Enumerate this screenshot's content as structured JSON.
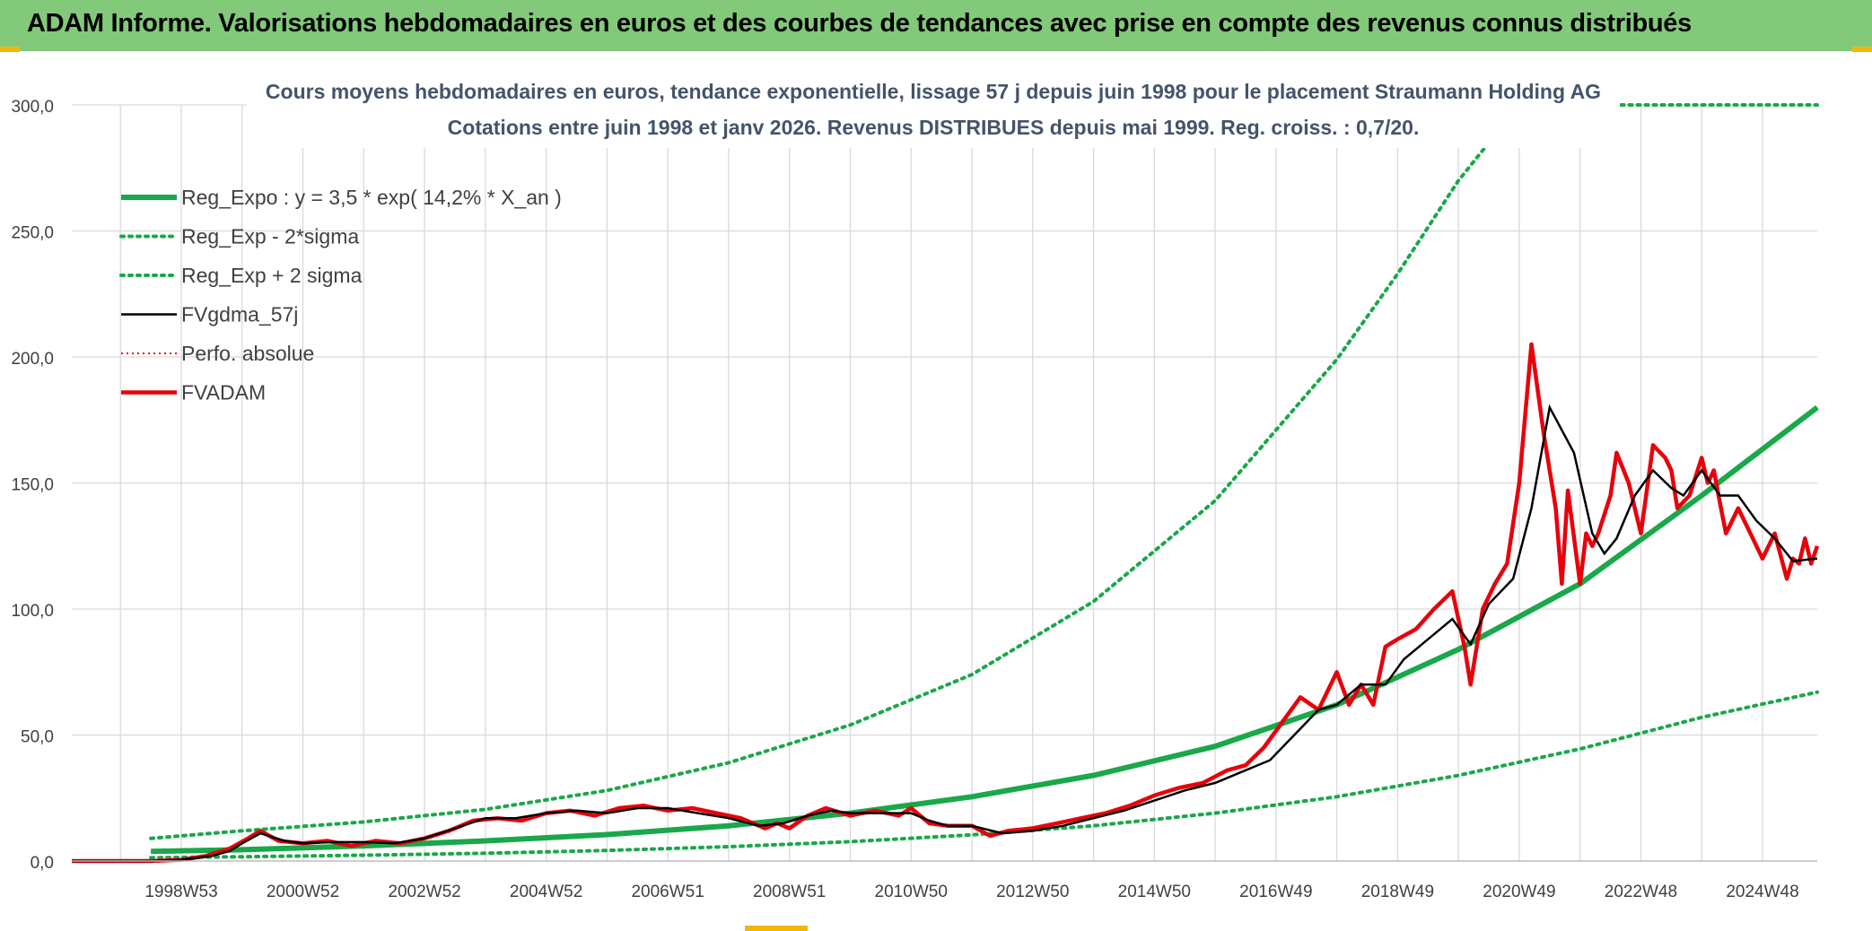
{
  "header": {
    "title": "ADAM Informe. Valorisations hebdomadaires en euros et des courbes de tendances avec prise en compte des revenus connus distribués"
  },
  "colors": {
    "header_bg": "#82c97a",
    "regression": "#19a84a",
    "fv57": "#000000",
    "fvadam": "#e8000b",
    "perf_abs": "#e8000b",
    "grid": "#d9d9d9"
  },
  "chart_data": {
    "type": "line",
    "title": "Cours moyens hebdomadaires en euros, tendance exponentielle, lissage 57 j depuis juin 1998 pour le placement Straumann Holding AG",
    "subtitle": "Cotations entre juin 1998 et janv 2026. Revenus DISTRIBUES depuis mai 1999. Reg. croiss. : 0,7/20.",
    "xlabel": "",
    "ylabel": "",
    "ylim": [
      0,
      300
    ],
    "xlim": [
      1997.2,
      2025.9
    ],
    "y_ticks": [
      0,
      50,
      100,
      150,
      200,
      250,
      300
    ],
    "y_tick_labels": [
      "0,0",
      "50,0",
      "100,0",
      "150,0",
      "200,0",
      "250,0",
      "300,0"
    ],
    "x_tick_labels": [
      "1998W53",
      "2000W52",
      "2002W52",
      "2004W52",
      "2006W51",
      "2008W51",
      "2010W50",
      "2012W50",
      "2014W50",
      "2016W49",
      "2018W49",
      "2020W49",
      "2022W48",
      "2024W48"
    ],
    "x_tick_years": [
      1999,
      2001,
      2003,
      2005,
      2007,
      2009,
      2011,
      2013,
      2015,
      2017,
      2019,
      2021,
      2023,
      2025
    ],
    "grid": true,
    "legend_position": "top-left",
    "legend": [
      {
        "label": "Reg_Expo : y = 3,5 * exp( 14,2% *  X_an )",
        "series": "reg_expo",
        "style": "thick-solid-green"
      },
      {
        "label": "Reg_Exp - 2*sigma",
        "series": "reg_minus",
        "style": "dotted-green"
      },
      {
        "label": "Reg_Exp + 2 sigma",
        "series": "reg_plus",
        "style": "dotted-green"
      },
      {
        "label": "FVgdma_57j",
        "series": "fv57",
        "style": "solid-black"
      },
      {
        "label": "Perfo. absolue",
        "series": "perf_abs",
        "style": "dotted-red"
      },
      {
        "label": "FVADAM",
        "series": "fvadam",
        "style": "thick-solid-red"
      }
    ],
    "series": [
      {
        "name": "Reg_Expo : y = 3,5 * exp( 14,2% *  X_an )",
        "key": "reg_expo",
        "x": [
          1998.5,
          2000,
          2002,
          2004,
          2006,
          2008,
          2010,
          2012,
          2014,
          2016,
          2018,
          2020,
          2022,
          2024,
          2025.9
        ],
        "y": [
          3.8,
          4.5,
          6,
          8,
          10.5,
          14,
          19,
          25.5,
          34,
          45.5,
          62,
          84,
          110,
          145,
          180
        ]
      },
      {
        "name": "Reg_Exp - 2*sigma",
        "key": "reg_minus",
        "x": [
          1998.5,
          2000,
          2002,
          2004,
          2006,
          2008,
          2010,
          2012,
          2014,
          2016,
          2018,
          2020,
          2022,
          2024,
          2025.9
        ],
        "y": [
          1.3,
          1.7,
          2.3,
          3.1,
          4.2,
          5.7,
          7.7,
          10.4,
          14,
          19,
          25.5,
          34,
          44.5,
          57,
          67
        ]
      },
      {
        "name": "Reg_Exp + 2 sigma",
        "key": "reg_plus",
        "x": [
          1998.5,
          2000,
          2002,
          2004,
          2006,
          2008,
          2010,
          2012,
          2014,
          2016,
          2018,
          2019,
          2020,
          2021,
          2022,
          2023,
          2024.3,
          2025.9
        ],
        "y": [
          9,
          12,
          15.5,
          20.5,
          28,
          39,
          54,
          74,
          103,
          143,
          199,
          233,
          270,
          300,
          300,
          300,
          300,
          300
        ]
      },
      {
        "name": "FVgdma_57j",
        "key": "fv57",
        "x": [
          1997.2,
          1998.5,
          1999.0,
          1999.5,
          1999.8,
          2000.0,
          2000.3,
          2000.7,
          2001.0,
          2001.5,
          2002.0,
          2002.5,
          2003.0,
          2003.5,
          2004.0,
          2004.5,
          2005.0,
          2005.5,
          2006.0,
          2006.5,
          2007.0,
          2007.5,
          2008.0,
          2008.5,
          2008.9,
          2009.3,
          2009.7,
          2010.0,
          2010.5,
          2011.0,
          2011.3,
          2011.6,
          2012.0,
          2012.5,
          2013.0,
          2013.5,
          2014.0,
          2014.5,
          2015.0,
          2015.5,
          2016.0,
          2016.5,
          2016.9,
          2017.3,
          2017.7,
          2018.0,
          2018.4,
          2018.8,
          2019.1,
          2019.5,
          2019.9,
          2020.2,
          2020.5,
          2020.9,
          2021.2,
          2021.5,
          2021.9,
          2022.2,
          2022.4,
          2022.6,
          2022.9,
          2023.2,
          2023.5,
          2023.7,
          2024.0,
          2024.3,
          2024.6,
          2024.9,
          2025.2,
          2025.5,
          2025.9
        ],
        "y": [
          0,
          0,
          0.5,
          2,
          4,
          7,
          11,
          8,
          7,
          7.5,
          7.5,
          7,
          9,
          13,
          17,
          17,
          19,
          20,
          19,
          21,
          21,
          19,
          17,
          14,
          15,
          18,
          20,
          19,
          19,
          19,
          16,
          14,
          14,
          11,
          12,
          14,
          17,
          20,
          24,
          28,
          31,
          36,
          40,
          50,
          60,
          62,
          70,
          70,
          80,
          88,
          96,
          86,
          102,
          112,
          140,
          180,
          162,
          130,
          122,
          128,
          145,
          155,
          148,
          145,
          155,
          145,
          145,
          135,
          128,
          119,
          120
        ]
      },
      {
        "name": "Perfo. absolue",
        "key": "perf_abs",
        "x": [],
        "y": []
      },
      {
        "name": "FVADAM",
        "key": "fvadam",
        "x": [
          1997.2,
          1998.5,
          1999.0,
          1999.4,
          1999.8,
          2000.1,
          2000.3,
          2000.6,
          2001.0,
          2001.4,
          2001.8,
          2002.2,
          2002.6,
          2003.0,
          2003.4,
          2003.8,
          2004.2,
          2004.6,
          2005.0,
          2005.4,
          2005.8,
          2006.2,
          2006.6,
          2007.0,
          2007.4,
          2007.8,
          2008.2,
          2008.6,
          2008.8,
          2009.0,
          2009.3,
          2009.6,
          2010.0,
          2010.4,
          2010.8,
          2011.0,
          2011.3,
          2011.6,
          2012.0,
          2012.3,
          2012.6,
          2013.0,
          2013.4,
          2013.8,
          2014.2,
          2014.6,
          2015.0,
          2015.4,
          2015.8,
          2016.2,
          2016.5,
          2016.8,
          2017.1,
          2017.4,
          2017.7,
          2018.0,
          2018.2,
          2018.4,
          2018.6,
          2018.8,
          2019.0,
          2019.3,
          2019.6,
          2019.9,
          2020.1,
          2020.2,
          2020.4,
          2020.6,
          2020.8,
          2021.0,
          2021.2,
          2021.4,
          2021.6,
          2021.7,
          2021.8,
          2022.0,
          2022.1,
          2022.2,
          2022.3,
          2022.5,
          2022.6,
          2022.8,
          2023.0,
          2023.2,
          2023.4,
          2023.5,
          2023.6,
          2023.8,
          2024.0,
          2024.1,
          2024.2,
          2024.3,
          2024.4,
          2024.6,
          2024.8,
          2025.0,
          2025.2,
          2025.4,
          2025.5,
          2025.6,
          2025.7,
          2025.8,
          2025.9
        ],
        "y": [
          0,
          0,
          0.5,
          2,
          5,
          9,
          12,
          8,
          7,
          8,
          6,
          8,
          7,
          9,
          12,
          16,
          17,
          16,
          19,
          20,
          18,
          21,
          22,
          20,
          21,
          19,
          17,
          13,
          15,
          13,
          18,
          21,
          18,
          20,
          18,
          21,
          15,
          14,
          14,
          10,
          12,
          13,
          15,
          17,
          19,
          22,
          26,
          29,
          31,
          36,
          38,
          45,
          55,
          65,
          60,
          75,
          62,
          70,
          62,
          85,
          88,
          92,
          100,
          107,
          85,
          70,
          100,
          110,
          118,
          150,
          205,
          170,
          140,
          110,
          147,
          110,
          130,
          125,
          130,
          145,
          162,
          150,
          130,
          165,
          160,
          155,
          140,
          145,
          160,
          150,
          155,
          142,
          130,
          140,
          130,
          120,
          130,
          112,
          120,
          118,
          128,
          118,
          125
        ]
      }
    ]
  }
}
